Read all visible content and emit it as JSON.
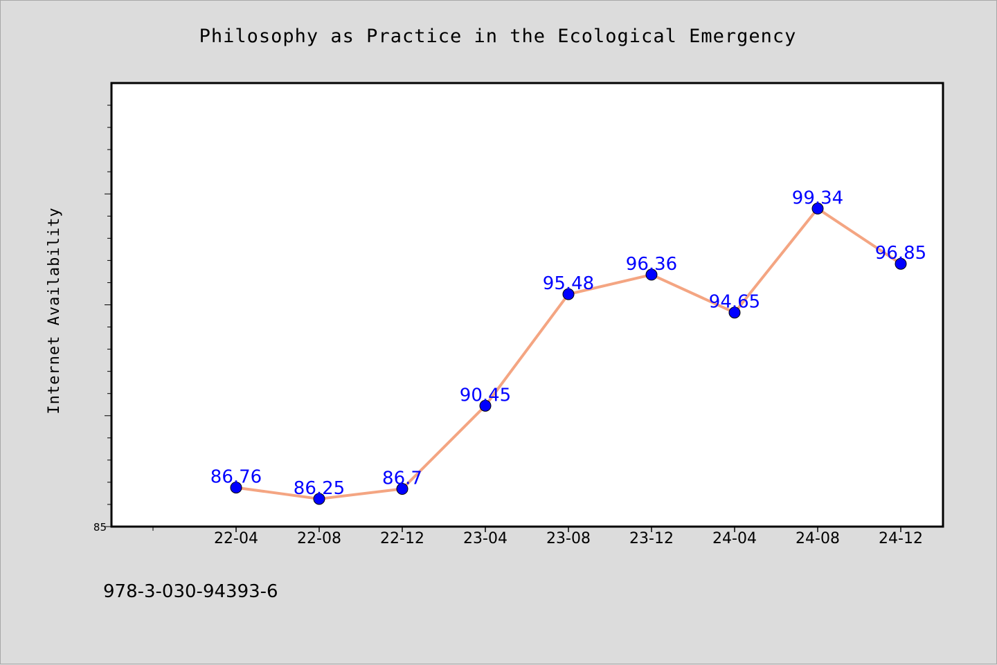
{
  "chart_data": {
    "type": "line",
    "title": "Philosophy as Practice in the Ecological Emergency",
    "ylabel": "Internet Availability",
    "xlabel": "",
    "categories": [
      "22-04",
      "22-08",
      "22-12",
      "23-04",
      "23-08",
      "23-12",
      "24-04",
      "24-08",
      "24-12"
    ],
    "series": [
      {
        "values": [
          86.76,
          86.25,
          86.7,
          90.45,
          95.48,
          96.36,
          94.65,
          99.34,
          96.85
        ]
      }
    ],
    "ylim": [
      85,
      105
    ],
    "yticks": [
      "85"
    ],
    "grid": false,
    "legend": "none",
    "line_color": "#f4a582",
    "marker_color": "#0000ff",
    "label_color": "#0000ff",
    "plot_background": "#ffffff",
    "figure_background": "#dcdcdc"
  },
  "footer": {
    "isbn": "978-3-030-94393-6"
  }
}
